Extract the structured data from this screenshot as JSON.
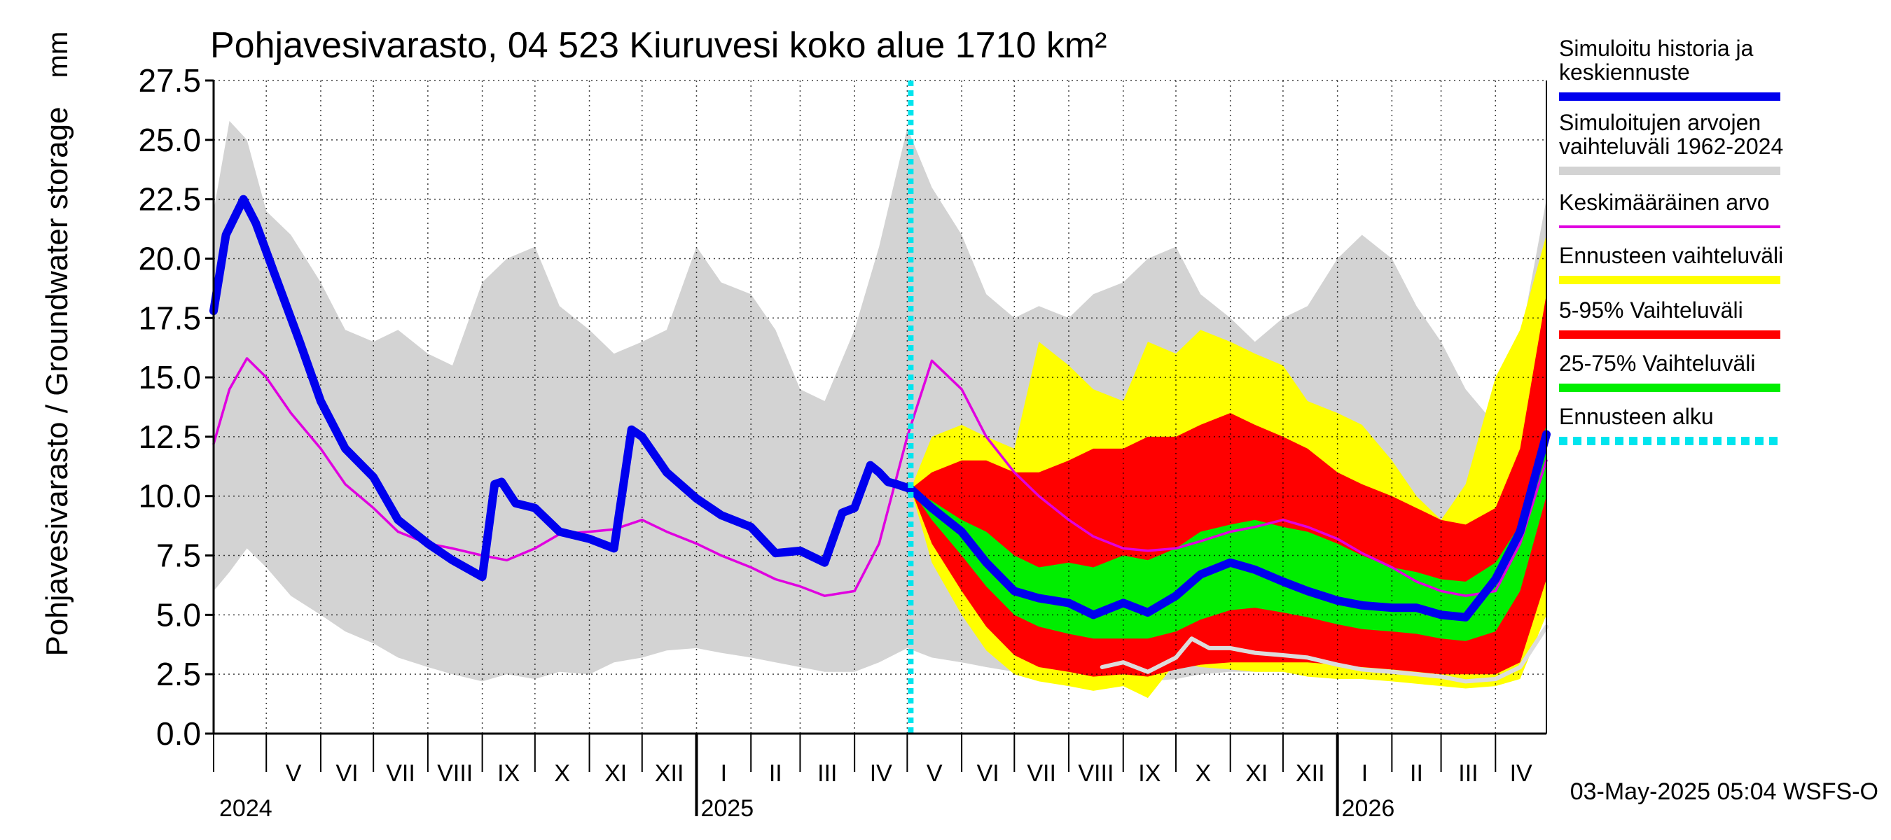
{
  "chart_data": {
    "type": "area",
    "title": "Pohjavesivarasto, 04 523 Kiuruvesi koko alue 1710 km²",
    "unit": "mm",
    "ylabel": "Pohjavesivarasto / Groundwater storage",
    "ylim": [
      0,
      27.5
    ],
    "yticks": [
      "0.0",
      "2.5",
      "5.0",
      "7.5",
      "10.0",
      "12.5",
      "15.0",
      "17.5",
      "20.0",
      "22.5",
      "25.0",
      "27.5"
    ],
    "x_start": "2024-04-01",
    "x_end": "2026-04-30",
    "forecast_start": "2025-05-03",
    "grid": true,
    "months": [
      "V",
      "VI",
      "VII",
      "VIII",
      "IX",
      "X",
      "XI",
      "XII",
      "I",
      "II",
      "III",
      "IV",
      "V",
      "VI",
      "VII",
      "VIII",
      "IX",
      "X",
      "XI",
      "XII",
      "I",
      "II",
      "III",
      "IV",
      "V",
      "VI",
      "VII",
      "VIII",
      "IX",
      "X",
      "XI",
      "XII",
      "I",
      "II",
      "III",
      "IV"
    ],
    "years": [
      "2024",
      "2025",
      "2026"
    ],
    "timestamp": "03-May-2025 05:04 WSFS-O",
    "legend": [
      {
        "label": "Simuloitu historia ja keskiennuste",
        "color": "#0000ee"
      },
      {
        "label": "Simuloitujen arvojen vaihteluväli 1962-2024",
        "color": "#d3d3d3"
      },
      {
        "label": "Keskimääräinen arvo",
        "color": "#e000e0"
      },
      {
        "label": "Ennusteen vaihteluväli",
        "color": "#ffff00"
      },
      {
        "label": "5-95% Vaihteluväli",
        "color": "#ff0000"
      },
      {
        "label": "25-75% Vaihteluväli",
        "color": "#00ee00"
      },
      {
        "label": "Ennusteen alku",
        "color": "#00e5ee"
      }
    ],
    "series": {
      "hist_range": {
        "x": [
          "2024-04-01",
          "2024-04-10",
          "2024-04-20",
          "2024-05-01",
          "2024-05-15",
          "2024-06-01",
          "2024-06-15",
          "2024-07-01",
          "2024-07-15",
          "2024-08-01",
          "2024-08-15",
          "2024-09-01",
          "2024-09-15",
          "2024-10-01",
          "2024-10-15",
          "2024-11-01",
          "2024-11-15",
          "2024-12-01",
          "2024-12-15",
          "2025-01-01",
          "2025-01-15",
          "2025-02-01",
          "2025-02-15",
          "2025-03-01",
          "2025-03-15",
          "2025-04-01",
          "2025-04-15",
          "2025-05-01",
          "2025-05-15",
          "2025-06-01",
          "2025-06-15",
          "2025-07-01",
          "2025-07-15",
          "2025-08-01",
          "2025-08-15",
          "2025-09-01",
          "2025-09-15",
          "2025-10-01",
          "2025-10-15",
          "2025-11-01",
          "2025-11-15",
          "2025-12-01",
          "2025-12-15",
          "2026-01-01",
          "2026-01-15",
          "2026-02-01",
          "2026-02-15",
          "2026-03-01",
          "2026-03-15",
          "2026-04-01",
          "2026-04-15",
          "2026-04-30"
        ],
        "low": [
          6.0,
          6.8,
          7.8,
          7.0,
          5.8,
          5.0,
          4.3,
          3.8,
          3.2,
          2.8,
          2.5,
          2.2,
          2.5,
          2.3,
          2.6,
          2.5,
          3.0,
          3.2,
          3.5,
          3.6,
          3.4,
          3.2,
          3.0,
          2.8,
          2.6,
          2.6,
          3.0,
          3.6,
          3.2,
          3.0,
          2.8,
          2.6,
          2.4,
          2.3,
          2.2,
          2.1,
          2.2,
          2.3,
          2.5,
          2.6,
          2.6,
          2.6,
          2.7,
          2.8,
          2.7,
          2.6,
          2.5,
          2.4,
          2.3,
          2.3,
          2.8,
          5.5
        ],
        "high": [
          22.0,
          25.8,
          25.0,
          22.0,
          21.0,
          19.0,
          17.0,
          16.5,
          17.0,
          16.0,
          15.5,
          19.0,
          20.0,
          20.5,
          18.0,
          17.0,
          16.0,
          16.5,
          17.0,
          20.5,
          19.0,
          18.5,
          17.0,
          14.5,
          14.0,
          17.0,
          20.5,
          25.5,
          23.0,
          21.0,
          18.5,
          17.5,
          18.0,
          17.5,
          18.5,
          19.0,
          20.0,
          20.5,
          18.5,
          17.5,
          16.5,
          17.5,
          18.0,
          20.0,
          21.0,
          20.0,
          18.0,
          16.5,
          14.5,
          13.0,
          16.5,
          22.5
        ]
      },
      "mean": {
        "x": [
          "2024-04-01",
          "2024-04-10",
          "2024-04-20",
          "2024-05-01",
          "2024-05-15",
          "2024-06-01",
          "2024-06-15",
          "2024-07-01",
          "2024-07-15",
          "2024-08-01",
          "2024-08-15",
          "2024-09-01",
          "2024-09-15",
          "2024-10-01",
          "2024-10-15",
          "2024-11-01",
          "2024-11-15",
          "2024-12-01",
          "2024-12-15",
          "2025-01-01",
          "2025-01-15",
          "2025-02-01",
          "2025-02-15",
          "2025-03-01",
          "2025-03-15",
          "2025-04-01",
          "2025-04-15",
          "2025-05-01",
          "2025-05-15",
          "2025-06-01",
          "2025-06-15",
          "2025-07-01",
          "2025-07-15",
          "2025-08-01",
          "2025-08-15",
          "2025-09-01",
          "2025-09-15",
          "2025-10-01",
          "2025-10-15",
          "2025-11-01",
          "2025-11-15",
          "2025-12-01",
          "2025-12-15",
          "2026-01-01",
          "2026-01-15",
          "2026-02-01",
          "2026-02-15",
          "2026-03-01",
          "2026-03-15",
          "2026-04-01",
          "2026-04-15",
          "2026-04-30"
        ],
        "y": [
          12.2,
          14.5,
          15.8,
          15.0,
          13.5,
          12.0,
          10.5,
          9.5,
          8.5,
          8.0,
          7.8,
          7.5,
          7.3,
          7.8,
          8.4,
          8.5,
          8.6,
          9.0,
          8.5,
          8.0,
          7.5,
          7.0,
          6.5,
          6.2,
          5.8,
          6.0,
          8.0,
          12.5,
          15.7,
          14.5,
          12.5,
          11.0,
          10.0,
          9.0,
          8.3,
          7.8,
          7.7,
          7.8,
          8.1,
          8.5,
          8.7,
          9.0,
          8.7,
          8.2,
          7.6,
          7.0,
          6.4,
          6.0,
          5.8,
          6.0,
          8.0,
          11.5
        ]
      },
      "main": {
        "x": [
          "2024-04-01",
          "2024-04-08",
          "2024-04-18",
          "2024-04-25",
          "2024-05-05",
          "2024-05-20",
          "2024-06-01",
          "2024-06-15",
          "2024-07-01",
          "2024-07-15",
          "2024-08-01",
          "2024-08-15",
          "2024-09-01",
          "2024-09-08",
          "2024-09-12",
          "2024-09-20",
          "2024-10-01",
          "2024-10-15",
          "2024-11-01",
          "2024-11-15",
          "2024-11-25",
          "2024-12-01",
          "2024-12-15",
          "2025-01-01",
          "2025-01-15",
          "2025-02-01",
          "2025-02-15",
          "2025-03-01",
          "2025-03-15",
          "2025-03-25",
          "2025-04-01",
          "2025-04-10",
          "2025-04-15",
          "2025-04-20",
          "2025-04-25",
          "2025-05-03",
          "2025-05-15",
          "2025-06-01",
          "2025-06-15",
          "2025-07-01",
          "2025-07-15",
          "2025-08-01",
          "2025-08-15",
          "2025-09-01",
          "2025-09-15",
          "2025-10-01",
          "2025-10-15",
          "2025-11-01",
          "2025-11-15",
          "2025-12-01",
          "2025-12-15",
          "2026-01-01",
          "2026-01-15",
          "2026-02-01",
          "2026-02-15",
          "2026-03-01",
          "2026-03-15",
          "2026-04-01",
          "2026-04-15",
          "2026-04-30"
        ],
        "y": [
          17.8,
          21.0,
          22.5,
          21.5,
          19.5,
          16.5,
          14.0,
          12.0,
          10.8,
          9.0,
          8.0,
          7.3,
          6.6,
          10.5,
          10.6,
          9.7,
          9.5,
          8.5,
          8.2,
          7.8,
          12.8,
          12.5,
          11.0,
          9.9,
          9.2,
          8.7,
          7.6,
          7.7,
          7.2,
          9.3,
          9.5,
          11.3,
          11.0,
          10.6,
          10.5,
          10.3,
          9.5,
          8.5,
          7.2,
          6.0,
          5.7,
          5.5,
          5.0,
          5.5,
          5.1,
          5.8,
          6.7,
          7.2,
          6.9,
          6.4,
          6.0,
          5.6,
          5.4,
          5.3,
          5.3,
          5.0,
          4.9,
          6.5,
          8.5,
          12.6
        ]
      },
      "forecast_range": {
        "x": [
          "2025-05-03",
          "2025-05-15",
          "2025-06-01",
          "2025-06-15",
          "2025-07-01",
          "2025-07-15",
          "2025-08-01",
          "2025-08-15",
          "2025-09-01",
          "2025-09-15",
          "2025-10-01",
          "2025-10-15",
          "2025-11-01",
          "2025-11-15",
          "2025-12-01",
          "2025-12-15",
          "2026-01-01",
          "2026-01-15",
          "2026-02-01",
          "2026-02-15",
          "2026-03-01",
          "2026-03-15",
          "2026-04-01",
          "2026-04-15",
          "2026-04-30"
        ],
        "low": [
          10.3,
          7.2,
          5.0,
          3.5,
          2.5,
          2.2,
          2.0,
          1.8,
          2.0,
          1.5,
          3.0,
          2.8,
          2.7,
          2.6,
          2.6,
          2.4,
          2.3,
          2.3,
          2.2,
          2.1,
          2.0,
          1.9,
          2.0,
          2.3,
          5.0
        ],
        "high": [
          10.3,
          12.5,
          13.0,
          12.5,
          12.0,
          16.5,
          15.5,
          14.5,
          14.0,
          16.5,
          16.0,
          17.0,
          16.5,
          16.0,
          15.5,
          14.0,
          13.5,
          13.0,
          11.5,
          10.0,
          9.0,
          10.5,
          15.0,
          17.0,
          21.0
        ]
      },
      "p5_95": {
        "x": [
          "2025-05-03",
          "2025-05-15",
          "2025-06-01",
          "2025-06-15",
          "2025-07-01",
          "2025-07-15",
          "2025-08-01",
          "2025-08-15",
          "2025-09-01",
          "2025-09-15",
          "2025-10-01",
          "2025-10-15",
          "2025-11-01",
          "2025-11-15",
          "2025-12-01",
          "2025-12-15",
          "2026-01-01",
          "2026-01-15",
          "2026-02-01",
          "2026-02-15",
          "2026-03-01",
          "2026-03-15",
          "2026-04-01",
          "2026-04-15",
          "2026-04-30"
        ],
        "low": [
          10.3,
          8.0,
          6.0,
          4.5,
          3.3,
          2.8,
          2.6,
          2.4,
          2.5,
          2.4,
          2.7,
          2.9,
          3.0,
          3.0,
          3.0,
          3.0,
          2.9,
          2.8,
          2.7,
          2.6,
          2.5,
          2.5,
          2.5,
          3.0,
          6.5
        ],
        "high": [
          10.3,
          11.0,
          11.5,
          11.5,
          11.0,
          11.0,
          11.5,
          12.0,
          12.0,
          12.5,
          12.5,
          13.0,
          13.5,
          13.0,
          12.5,
          12.0,
          11.0,
          10.5,
          10.0,
          9.5,
          9.0,
          8.8,
          9.5,
          12.0,
          18.5
        ]
      },
      "p25_75": {
        "x": [
          "2025-05-03",
          "2025-05-15",
          "2025-06-01",
          "2025-06-15",
          "2025-07-01",
          "2025-07-15",
          "2025-08-01",
          "2025-08-15",
          "2025-09-01",
          "2025-09-15",
          "2025-10-01",
          "2025-10-15",
          "2025-11-01",
          "2025-11-15",
          "2025-12-01",
          "2025-12-15",
          "2026-01-01",
          "2026-01-15",
          "2026-02-01",
          "2026-02-15",
          "2026-03-01",
          "2026-03-15",
          "2026-04-01",
          "2026-04-15",
          "2026-04-30"
        ],
        "low": [
          10.3,
          9.0,
          7.5,
          6.2,
          5.0,
          4.5,
          4.2,
          4.0,
          4.0,
          4.0,
          4.3,
          4.8,
          5.2,
          5.3,
          5.1,
          4.9,
          4.6,
          4.4,
          4.3,
          4.2,
          4.0,
          3.9,
          4.3,
          6.0,
          10.0
        ],
        "high": [
          10.3,
          9.8,
          9.0,
          8.5,
          7.5,
          7.0,
          7.2,
          7.0,
          7.5,
          7.3,
          7.8,
          8.5,
          8.8,
          9.0,
          8.7,
          8.5,
          8.0,
          7.5,
          7.0,
          6.8,
          6.5,
          6.4,
          7.2,
          8.8,
          13.0
        ]
      },
      "min_line": {
        "x": [
          "2025-08-20",
          "2025-09-01",
          "2025-09-15",
          "2025-10-01",
          "2025-10-10",
          "2025-10-20",
          "2025-11-01",
          "2025-11-15",
          "2025-12-01",
          "2025-12-15",
          "2026-01-01",
          "2026-01-15",
          "2026-02-01",
          "2026-02-15",
          "2026-03-01",
          "2026-03-15",
          "2026-04-01",
          "2026-04-15",
          "2026-04-30"
        ],
        "y": [
          2.8,
          3.0,
          2.6,
          3.2,
          4.0,
          3.6,
          3.6,
          3.4,
          3.3,
          3.2,
          2.9,
          2.7,
          2.6,
          2.5,
          2.4,
          2.2,
          2.3,
          2.8,
          4.5
        ]
      }
    }
  }
}
